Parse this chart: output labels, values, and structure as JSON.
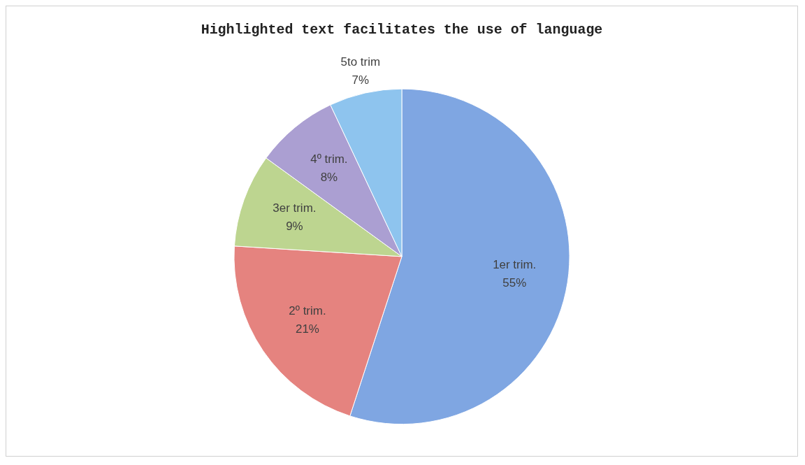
{
  "chart_data": {
    "type": "pie",
    "title": "Highlighted text facilitates the use of language",
    "categories": [
      "1er trim.",
      "2º trim.",
      "3er trim.",
      "4º trim.",
      "5to trim"
    ],
    "values": [
      55,
      21,
      9,
      8,
      7
    ],
    "colors": [
      "#7fa6e2",
      "#e5837f",
      "#bdd590",
      "#ab9fd2",
      "#8ec4ee"
    ],
    "value_labels": [
      "55%",
      "21%",
      "9%",
      "8%",
      "7%"
    ],
    "legend": false
  }
}
